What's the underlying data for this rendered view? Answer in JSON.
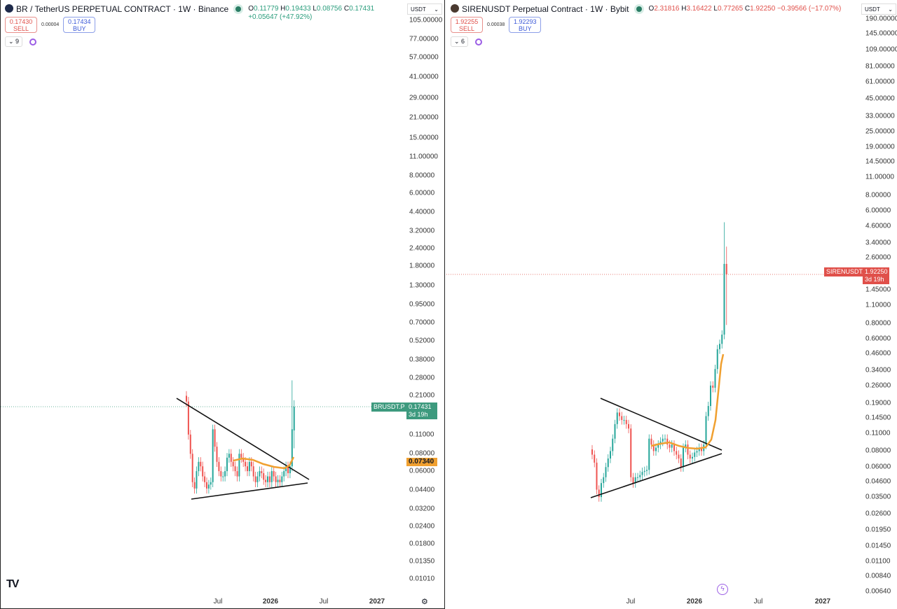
{
  "left": {
    "logo_icon": "br-coin-logo",
    "title": "BR / TetherUS PERPETUAL CONTRACT · 1W · Binance",
    "ohlc": {
      "o_label": "O",
      "o": "0.11779",
      "h_label": "H",
      "h": "0.19433",
      "l_label": "L",
      "l": "0.08756",
      "c_label": "C",
      "c": "0.17431",
      "change": "+0.05647 (+47.92%)"
    },
    "sell_price": "0.17430",
    "sell_label": "SELL",
    "spread": "0.00004",
    "buy_price": "0.17434",
    "buy_label": "BUY",
    "indicator_count": "9",
    "currency": "USDT",
    "price_ticks": [
      "105.00000",
      "77.00000",
      "57.00000",
      "41.00000",
      "29.00000",
      "21.00000",
      "15.00000",
      "11.00000",
      "8.00000",
      "6.00000",
      "4.40000",
      "3.20000",
      "2.40000",
      "1.80000",
      "1.30000",
      "0.95000",
      "0.70000",
      "0.52000",
      "0.38000",
      "0.28000",
      "0.21000",
      "0.11000",
      "0.08000",
      "0.06000",
      "0.04400",
      "0.03200",
      "0.02400",
      "0.01800",
      "0.01350",
      "0.01010"
    ],
    "time_ticks": [
      {
        "label": "Jul",
        "bold": false
      },
      {
        "label": "2026",
        "bold": true
      },
      {
        "label": "Jul",
        "bold": false
      },
      {
        "label": "2027",
        "bold": true
      }
    ],
    "symbol_label": "BRUSDT.P",
    "last_price": "0.17431",
    "countdown": "3d 19h",
    "ma_value": "0.07340",
    "colors": {
      "up": "#26a69a",
      "down": "#ef5350",
      "ma": "#f0a030",
      "last": "#3d9a7e"
    },
    "chart_data": {
      "type": "candlestick",
      "scale": "log",
      "closes": [
        0.19,
        0.11,
        0.08,
        0.05,
        0.045,
        0.06,
        0.07,
        0.065,
        0.055,
        0.05,
        0.045,
        0.048,
        0.05,
        0.12,
        0.09,
        0.07,
        0.06,
        0.055,
        0.055,
        0.06,
        0.075,
        0.08,
        0.07,
        0.065,
        0.06,
        0.055,
        0.08,
        0.075,
        0.07,
        0.065,
        0.06,
        0.07,
        0.065,
        0.055,
        0.05,
        0.055,
        0.06,
        0.058,
        0.052,
        0.05,
        0.055,
        0.05,
        0.06,
        0.055,
        0.05,
        0.052,
        0.05,
        0.055,
        0.06,
        0.065,
        0.058,
        0.065,
        0.12,
        0.17431
      ],
      "last_candle": {
        "o": 0.11779,
        "h": 0.19433,
        "l": 0.08756,
        "c": 0.17431
      },
      "prev_high": 0.27
    }
  },
  "right": {
    "logo_icon": "siren-coin-logo",
    "title": "SIRENUSDT Perpetual Contract · 1W · Bybit",
    "ohlc": {
      "o_label": "O",
      "o": "2.31816",
      "h_label": "H",
      "h": "3.16422",
      "l_label": "L",
      "l": "0.77265",
      "c_label": "C",
      "c": "1.92250",
      "change": "−0.39566 (−17.07%)"
    },
    "sell_price": "1.92255",
    "sell_label": "SELL",
    "spread": "0.00038",
    "buy_price": "1.92293",
    "buy_label": "BUY",
    "indicator_count": "6",
    "currency": "USDT",
    "price_ticks": [
      "190.00000",
      "145.00000",
      "109.00000",
      "81.00000",
      "61.00000",
      "45.00000",
      "33.00000",
      "25.00000",
      "19.00000",
      "14.50000",
      "11.00000",
      "8.00000",
      "6.00000",
      "4.60000",
      "3.40000",
      "2.60000",
      "1.45000",
      "1.10000",
      "0.80000",
      "0.60000",
      "0.46000",
      "0.34000",
      "0.26000",
      "0.19000",
      "0.14500",
      "0.11000",
      "0.08000",
      "0.06000",
      "0.04600",
      "0.03500",
      "0.02600",
      "0.01950",
      "0.01450",
      "0.01100",
      "0.00840",
      "0.00640"
    ],
    "time_ticks": [
      {
        "label": "Jul",
        "bold": false
      },
      {
        "label": "2026",
        "bold": true
      },
      {
        "label": "Jul",
        "bold": false
      },
      {
        "label": "2027",
        "bold": true
      }
    ],
    "symbol_label": "SIRENUSDT.P",
    "last_price": "1.92250",
    "countdown": "3d 19h",
    "colors": {
      "up": "#26a69a",
      "down": "#ef5350",
      "ma": "#f0a030",
      "last": "#e0504a"
    },
    "chart_data": {
      "type": "candlestick",
      "scale": "log",
      "closes": [
        0.075,
        0.065,
        0.04,
        0.035,
        0.045,
        0.05,
        0.06,
        0.07,
        0.08,
        0.1,
        0.13,
        0.16,
        0.15,
        0.14,
        0.14,
        0.13,
        0.12,
        0.05,
        0.045,
        0.05,
        0.05,
        0.052,
        0.055,
        0.056,
        0.057,
        0.1,
        0.09,
        0.08,
        0.085,
        0.09,
        0.095,
        0.1,
        0.1,
        0.09,
        0.085,
        0.09,
        0.08,
        0.075,
        0.07,
        0.06,
        0.085,
        0.09,
        0.075,
        0.07,
        0.072,
        0.078,
        0.08,
        0.085,
        0.08,
        0.09,
        0.15,
        0.18,
        0.26,
        0.25,
        0.35,
        0.5,
        0.55,
        0.65,
        2.31816,
        1.9225
      ],
      "last_candle": {
        "o": 2.31816,
        "h": 3.16422,
        "l": 0.77265,
        "c": 1.9225
      },
      "prev_high": 4.9
    }
  },
  "footer": {
    "brand_icon": "tradingview-logo",
    "settings_icon": "gear-icon",
    "alert_icon": "lightning-icon"
  }
}
